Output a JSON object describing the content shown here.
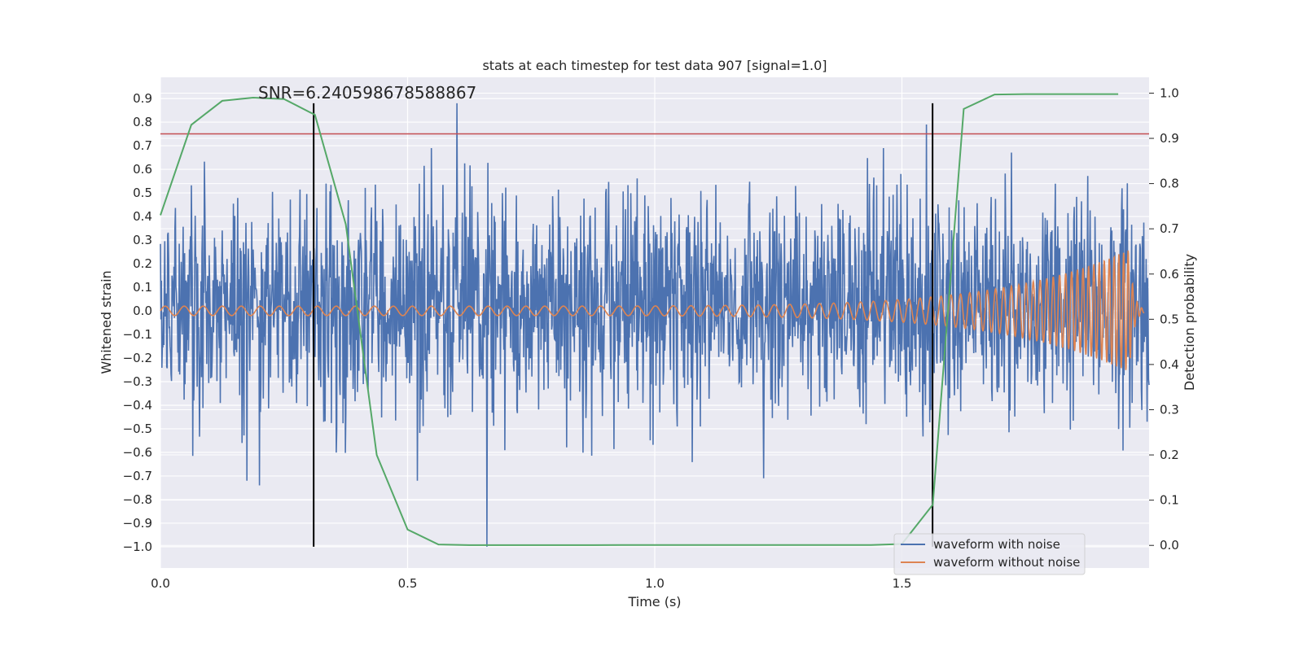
{
  "chart_data": {
    "type": "line",
    "title": "stats at each timestep for test data 907 [signal=1.0]",
    "annotation": "SNR=6.240598678588867",
    "xlabel": "Time (s)",
    "ylabel": "Whitened strain",
    "y2label": "Detection probability",
    "xlim": [
      0.0,
      2.0
    ],
    "ylim": [
      -1.09,
      0.99
    ],
    "y2lim": [
      -0.05,
      1.035
    ],
    "x_ticks": [
      0.0,
      0.5,
      1.0,
      1.5
    ],
    "x_tick_labels": [
      "0.0",
      "0.5",
      "1.0",
      "1.5"
    ],
    "y_ticks": [
      0.9,
      0.8,
      0.7,
      0.6,
      0.5,
      0.4,
      0.3,
      0.2,
      0.1,
      0.0,
      -0.1,
      -0.2,
      -0.3,
      -0.4,
      -0.5,
      -0.6,
      -0.7,
      -0.8,
      -0.9,
      -1.0
    ],
    "y_tick_labels": [
      "0.9",
      "0.8",
      "0.7",
      "0.6",
      "0.5",
      "0.4",
      "0.3",
      "0.2",
      "0.1",
      "0.0",
      "−0.1",
      "−0.2",
      "−0.3",
      "−0.4",
      "−0.5",
      "−0.6",
      "−0.7",
      "−0.8",
      "−0.9",
      "−1.0"
    ],
    "y2_ticks": [
      1.0,
      0.9,
      0.8,
      0.7,
      0.6,
      0.5,
      0.4,
      0.3,
      0.2,
      0.1,
      0.0
    ],
    "y2_tick_labels": [
      "1.0",
      "0.9",
      "0.8",
      "0.7",
      "0.6",
      "0.5",
      "0.4",
      "0.3",
      "0.2",
      "0.1",
      "0.0"
    ],
    "grid": true,
    "legend_position": "lower right",
    "series": [
      {
        "name": "waveform with noise",
        "color": "#4c72b0",
        "kind": "noise",
        "x_range": [
          0.0,
          2.0
        ],
        "amplitude_typical": 0.25,
        "notable_points": [
          [
            0.6,
            0.88
          ],
          [
            0.66,
            -1.0
          ],
          [
            0.2,
            -0.74
          ],
          [
            1.22,
            -0.71
          ],
          [
            1.55,
            0.79
          ]
        ]
      },
      {
        "name": "waveform without noise",
        "color": "#dd8452",
        "kind": "chirp",
        "x_range": [
          0.0,
          1.99
        ],
        "amplitude_start": 0.02,
        "amplitude_peak": 0.26,
        "peak_time": 1.96,
        "frequency_start": 26,
        "frequency_end": 110
      },
      {
        "name": "detection probability",
        "color": "#55a868",
        "axis": "y2",
        "x": [
          0.0,
          0.0625,
          0.125,
          0.1875,
          0.25,
          0.3125,
          0.375,
          0.4375,
          0.5,
          0.5625,
          0.625,
          0.6875,
          0.75,
          0.8125,
          0.875,
          0.9375,
          1.0,
          1.0625,
          1.125,
          1.1875,
          1.25,
          1.3125,
          1.375,
          1.4375,
          1.5,
          1.5625,
          1.625,
          1.6875,
          1.75,
          1.8125,
          1.875,
          1.9375
        ],
        "y": [
          0.73,
          0.93,
          0.983,
          0.99,
          0.987,
          0.952,
          0.71,
          0.2,
          0.035,
          0.002,
          0.0005,
          0.0005,
          0.0005,
          0.0005,
          0.0005,
          0.0008,
          0.0008,
          0.001,
          0.001,
          0.001,
          0.0008,
          0.0008,
          0.0008,
          0.0008,
          0.003,
          0.09,
          0.965,
          0.997,
          0.998,
          0.998,
          0.998,
          0.998
        ]
      }
    ],
    "threshold": {
      "value": 0.91,
      "axis": "y2",
      "color": "#c44e52"
    },
    "event_lines": {
      "x": [
        0.31,
        1.562
      ],
      "y_from": -1.0,
      "y_to": 0.88,
      "color": "#000000"
    }
  }
}
